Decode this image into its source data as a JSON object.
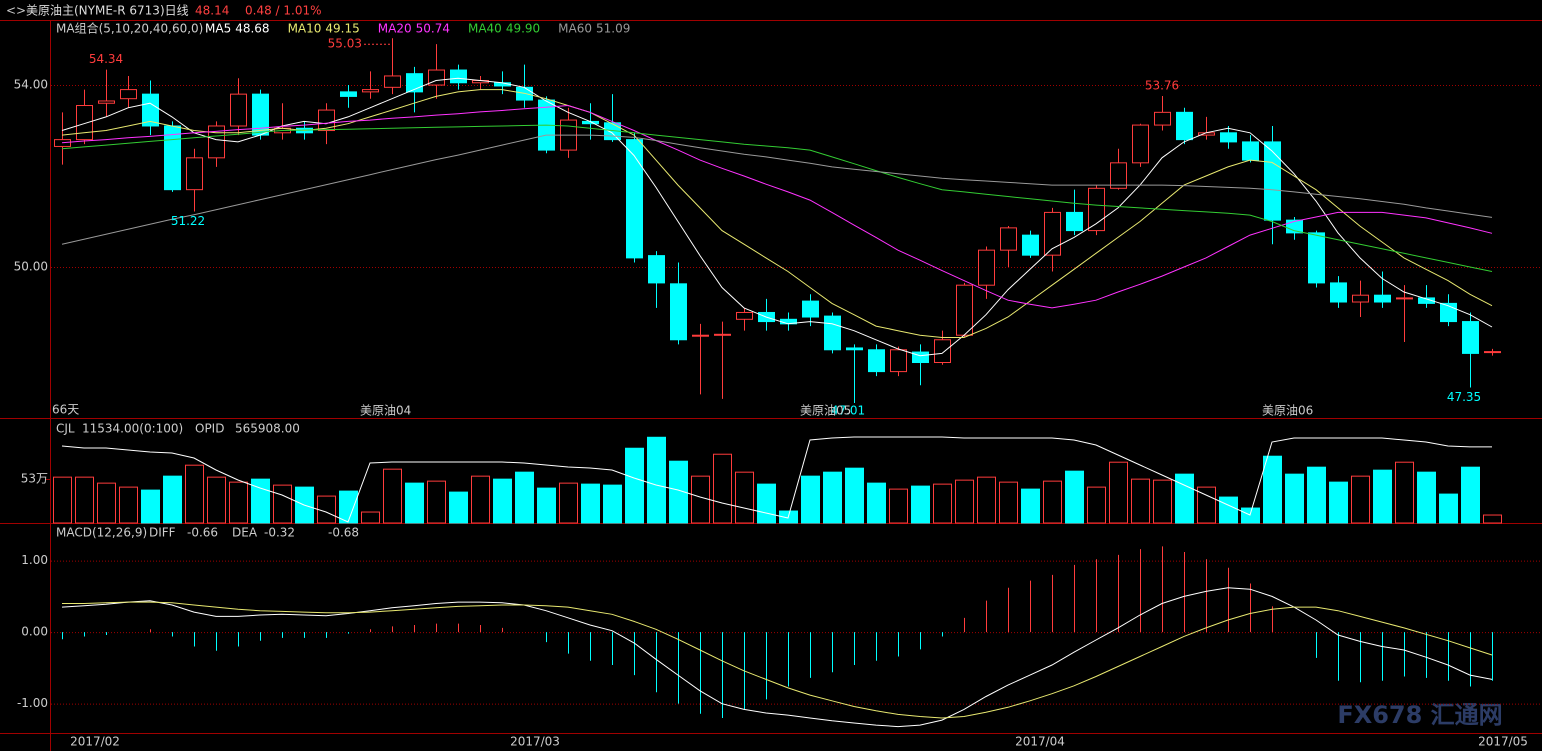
{
  "chart_data": {
    "type": "candlestick",
    "title": "美原油主(NYME-R 6713)日线",
    "last_price": "48.14",
    "change": "0.48 / 1.01%",
    "ma_title": "MA组合(5,10,20,40,60,0)",
    "days": "66天",
    "contracts": [
      "美原油04",
      "美原油05",
      "美原油06"
    ],
    "dates": [
      "2017/02",
      "2017/03",
      "2017/04",
      "2017/05"
    ],
    "watermark": "FX678 汇通网",
    "open": [
      52.65,
      52.8,
      53.6,
      53.7,
      53.8,
      53.1,
      51.7,
      52.4,
      53.1,
      53.8,
      52.95,
      53.05,
      53.0,
      53.85,
      53.85,
      53.95,
      54.25,
      54.0,
      54.33,
      54.05,
      54.05,
      53.95,
      53.67,
      52.57,
      53.2,
      53.17,
      52.8,
      50.25,
      49.63,
      48.48,
      48.5,
      48.85,
      49.0,
      48.85,
      49.25,
      48.92,
      48.22,
      48.18,
      47.7,
      48.13,
      47.9,
      48.5,
      49.6,
      50.37,
      50.7,
      50.26,
      51.2,
      50.8,
      51.73,
      52.29,
      53.12,
      53.4,
      52.9,
      52.95,
      52.75,
      52.75,
      51.03,
      50.75,
      49.65,
      49.23,
      49.38,
      49.3,
      49.32,
      49.2,
      48.8,
      48.12
    ],
    "high": [
      53.4,
      53.9,
      54.34,
      54.2,
      54.1,
      53.2,
      52.6,
      53.2,
      54.15,
      53.9,
      53.6,
      53.2,
      53.6,
      54.0,
      54.3,
      55.03,
      54.4,
      54.9,
      54.45,
      54.2,
      54.3,
      54.45,
      53.75,
      53.5,
      53.6,
      53.8,
      52.95,
      50.35,
      50.1,
      48.75,
      48.8,
      49.1,
      49.3,
      49.0,
      49.4,
      49.0,
      48.3,
      48.3,
      48.25,
      48.3,
      48.6,
      49.65,
      50.45,
      50.9,
      50.8,
      51.3,
      51.7,
      51.8,
      52.6,
      53.15,
      53.76,
      53.5,
      53.3,
      53.1,
      52.9,
      53.1,
      51.1,
      50.8,
      49.8,
      49.7,
      49.9,
      49.6,
      49.6,
      49.4,
      49.0,
      48.2
    ],
    "low": [
      52.25,
      52.7,
      53.3,
      53.5,
      52.9,
      51.65,
      51.22,
      52.2,
      52.9,
      52.8,
      52.8,
      52.8,
      52.7,
      53.5,
      53.7,
      53.8,
      53.4,
      53.7,
      53.9,
      53.9,
      53.8,
      53.5,
      52.5,
      52.4,
      52.8,
      52.75,
      50.1,
      49.1,
      48.3,
      47.2,
      47.1,
      48.6,
      48.6,
      48.6,
      48.7,
      48.1,
      47.01,
      47.6,
      47.6,
      47.4,
      47.85,
      48.45,
      49.3,
      50.0,
      50.2,
      49.9,
      50.7,
      50.7,
      51.7,
      52.2,
      53.0,
      52.7,
      52.8,
      52.6,
      52.3,
      50.5,
      50.6,
      49.55,
      49.1,
      48.9,
      49.1,
      48.35,
      49.1,
      48.7,
      47.35,
      48.05
    ],
    "close": [
      52.8,
      53.55,
      53.65,
      53.9,
      53.1,
      51.7,
      52.4,
      53.1,
      53.8,
      52.9,
      53.05,
      52.95,
      53.45,
      53.75,
      53.9,
      54.2,
      53.85,
      54.33,
      54.05,
      54.1,
      53.98,
      53.67,
      52.57,
      53.23,
      53.15,
      52.8,
      50.2,
      49.65,
      48.4,
      48.5,
      48.52,
      49.0,
      48.8,
      48.75,
      48.9,
      48.18,
      48.18,
      47.7,
      48.18,
      47.9,
      48.4,
      49.6,
      50.37,
      50.86,
      50.26,
      51.2,
      50.8,
      51.73,
      52.29,
      53.12,
      53.4,
      52.8,
      52.95,
      52.75,
      52.35,
      51.03,
      50.75,
      49.65,
      49.23,
      49.38,
      49.23,
      49.32,
      49.2,
      48.8,
      48.1,
      48.14
    ],
    "ylim": [
      46.68,
      55.43
    ],
    "yticks": [
      {
        "value": 50,
        "label": "50.00"
      },
      {
        "value": 54,
        "label": "54.00"
      }
    ],
    "ma": [
      {
        "name": "MA5",
        "color": "#ffffff",
        "legend_value": "48.68",
        "values": [
          53.0,
          53.15,
          53.3,
          53.5,
          53.6,
          53.3,
          52.95,
          52.8,
          52.75,
          52.9,
          53.1,
          53.2,
          53.15,
          53.3,
          53.5,
          53.7,
          53.9,
          54.1,
          54.15,
          54.1,
          54.05,
          53.95,
          53.65,
          53.4,
          53.2,
          52.95,
          52.45,
          51.75,
          51.0,
          50.25,
          49.55,
          49.1,
          48.9,
          48.75,
          48.8,
          48.75,
          48.6,
          48.4,
          48.2,
          48.05,
          48.1,
          48.5,
          48.95,
          49.5,
          49.95,
          50.4,
          50.65,
          50.95,
          51.3,
          51.8,
          52.4,
          52.75,
          52.95,
          53.05,
          52.95,
          52.55,
          52.05,
          51.45,
          50.75,
          50.2,
          49.75,
          49.45,
          49.3,
          49.15,
          48.95,
          48.68
        ]
      },
      {
        "name": "MA10",
        "color": "#e8e870",
        "legend_value": "49.15",
        "values": [
          52.9,
          52.95,
          53.0,
          53.1,
          53.2,
          53.1,
          53.0,
          52.95,
          52.95,
          53.0,
          53.05,
          53.0,
          53.05,
          53.15,
          53.3,
          53.45,
          53.6,
          53.75,
          53.85,
          53.9,
          53.9,
          53.82,
          53.7,
          53.55,
          53.4,
          53.15,
          52.9,
          52.35,
          51.8,
          51.3,
          50.8,
          50.5,
          50.2,
          49.9,
          49.55,
          49.2,
          48.95,
          48.7,
          48.6,
          48.5,
          48.45,
          48.45,
          48.65,
          48.9,
          49.25,
          49.6,
          49.95,
          50.3,
          50.65,
          51.0,
          51.4,
          51.8,
          52.0,
          52.2,
          52.35,
          52.3,
          52.0,
          51.7,
          51.3,
          50.9,
          50.55,
          50.2,
          49.95,
          49.7,
          49.4,
          49.15
        ]
      },
      {
        "name": "MA20",
        "color": "#ff33ff",
        "legend_value": "50.74",
        "values": [
          52.73,
          52.77,
          52.8,
          52.84,
          52.87,
          52.91,
          52.95,
          52.98,
          53.02,
          53.05,
          53.09,
          53.12,
          53.16,
          53.2,
          53.23,
          53.27,
          53.3,
          53.34,
          53.37,
          53.41,
          53.44,
          53.48,
          53.51,
          53.55,
          53.4,
          53.2,
          53.0,
          52.78,
          52.57,
          52.35,
          52.17,
          52.0,
          51.82,
          51.65,
          51.47,
          51.2,
          50.92,
          50.65,
          50.37,
          50.15,
          49.92,
          49.7,
          49.48,
          49.27,
          49.18,
          49.1,
          49.18,
          49.27,
          49.45,
          49.62,
          49.8,
          50.0,
          50.2,
          50.45,
          50.7,
          50.85,
          51.0,
          51.1,
          51.2,
          51.2,
          51.2,
          51.14,
          51.08,
          50.97,
          50.86,
          50.74
        ]
      },
      {
        "name": "MA40",
        "color": "#33cc33",
        "legend_value": "49.90",
        "values": [
          52.6,
          52.64,
          52.68,
          52.72,
          52.76,
          52.8,
          52.84,
          52.88,
          52.92,
          52.96,
          53.0,
          53.01,
          53.02,
          53.03,
          53.04,
          53.05,
          53.06,
          53.07,
          53.08,
          53.09,
          53.1,
          53.11,
          53.12,
          53.1,
          53.05,
          53.0,
          52.95,
          52.9,
          52.85,
          52.8,
          52.75,
          52.7,
          52.66,
          52.62,
          52.57,
          52.42,
          52.27,
          52.12,
          51.97,
          51.83,
          51.7,
          51.65,
          51.6,
          51.55,
          51.5,
          51.45,
          51.4,
          51.36,
          51.33,
          51.3,
          51.27,
          51.24,
          51.21,
          51.18,
          51.14,
          51.0,
          50.8,
          50.7,
          50.6,
          50.5,
          50.4,
          50.3,
          50.2,
          50.1,
          50.0,
          49.9
        ]
      },
      {
        "name": "MA60",
        "color": "#999999",
        "legend_value": "51.09",
        "values": [
          50.5,
          50.61,
          50.72,
          50.83,
          50.94,
          51.05,
          51.15,
          51.26,
          51.37,
          51.48,
          51.59,
          51.7,
          51.81,
          51.92,
          52.03,
          52.14,
          52.25,
          52.36,
          52.46,
          52.57,
          52.68,
          52.79,
          52.9,
          52.9,
          52.9,
          52.88,
          52.85,
          52.78,
          52.7,
          52.62,
          52.55,
          52.48,
          52.42,
          52.35,
          52.28,
          52.2,
          52.15,
          52.1,
          52.05,
          52.0,
          51.95,
          51.92,
          51.89,
          51.86,
          51.83,
          51.8,
          51.8,
          51.8,
          51.8,
          51.8,
          51.8,
          51.79,
          51.77,
          51.75,
          51.73,
          51.7,
          51.65,
          51.6,
          51.55,
          51.5,
          51.44,
          51.38,
          51.3,
          51.23,
          51.16,
          51.09
        ]
      }
    ],
    "volume": {
      "title": "CJL",
      "title_value": "11534.00(0:100)",
      "values": [
        552000,
        552000,
        480000,
        432000,
        396000,
        564000,
        696000,
        552000,
        492000,
        528000,
        456000,
        432000,
        324000,
        384000,
        132000,
        648000,
        480000,
        504000,
        372000,
        564000,
        528000,
        612000,
        420000,
        480000,
        468000,
        456000,
        900000,
        1032000,
        744000,
        564000,
        828000,
        612000,
        468000,
        144000,
        564000,
        612000,
        660000,
        480000,
        408000,
        444000,
        468000,
        516000,
        552000,
        492000,
        408000,
        504000,
        624000,
        432000,
        732000,
        528000,
        516000,
        588000,
        432000,
        312000,
        180000,
        804000,
        588000,
        672000,
        492000,
        564000,
        636000,
        732000,
        612000,
        348000,
        672000,
        96000
      ],
      "ylim": [
        0,
        1240000
      ],
      "yticks": [
        {
          "value": 530000,
          "label": "53万"
        }
      ],
      "opid": {
        "name": "OPID",
        "legend_value": "565908.00",
        "color": "#ffffff",
        "ylim": [
          430000,
          614000
        ],
        "values": [
          567522,
          563950,
          563950,
          560378,
          556806,
          555020,
          546090,
          524658,
          506798,
          492510,
          480008,
          462148,
          449646,
          431786,
          537160,
          538946,
          538946,
          538946,
          538946,
          538946,
          538946,
          537160,
          533588,
          530016,
          528230,
          524658,
          510370,
          497868,
          488938,
          476436,
          465720,
          456790,
          447860,
          438930,
          578238,
          581810,
          583596,
          583596,
          583596,
          583596,
          583596,
          581810,
          581810,
          581810,
          581810,
          581810,
          578238,
          569308,
          551448,
          533588,
          515728,
          497868,
          480008,
          462148,
          444288,
          574666,
          581810,
          581810,
          581810,
          581810,
          581810,
          578238,
          574666,
          567522,
          565908,
          565908
        ]
      }
    },
    "macd": {
      "title": "MACD(12,26,9)",
      "ylim": [
        -1.41,
        1.47
      ],
      "yticks": [
        {
          "value": -1,
          "label": "-1.00"
        },
        {
          "value": 0,
          "label": "0.00"
        },
        {
          "value": 1,
          "label": "1.00"
        }
      ],
      "diff": {
        "name": "DIFF",
        "legend_value": "-0.66",
        "color": "#ffffff",
        "values": [
          0.35,
          0.37,
          0.39,
          0.42,
          0.44,
          0.38,
          0.28,
          0.22,
          0.22,
          0.24,
          0.25,
          0.24,
          0.23,
          0.26,
          0.3,
          0.34,
          0.37,
          0.4,
          0.42,
          0.42,
          0.41,
          0.38,
          0.3,
          0.2,
          0.1,
          0.02,
          -0.15,
          -0.38,
          -0.6,
          -0.82,
          -1.0,
          -1.08,
          -1.13,
          -1.16,
          -1.2,
          -1.24,
          -1.27,
          -1.3,
          -1.32,
          -1.3,
          -1.23,
          -1.08,
          -0.9,
          -0.74,
          -0.6,
          -0.46,
          -0.28,
          -0.11,
          0.06,
          0.24,
          0.4,
          0.5,
          0.57,
          0.62,
          0.6,
          0.5,
          0.35,
          0.17,
          -0.04,
          -0.13,
          -0.2,
          -0.25,
          -0.35,
          -0.46,
          -0.6,
          -0.66
        ]
      },
      "dea": {
        "name": "DEA",
        "legend_value": "-0.32",
        "color": "#e8e870",
        "values": [
          0.4,
          0.4,
          0.41,
          0.42,
          0.42,
          0.41,
          0.38,
          0.35,
          0.32,
          0.3,
          0.29,
          0.28,
          0.27,
          0.27,
          0.28,
          0.3,
          0.32,
          0.34,
          0.36,
          0.37,
          0.38,
          0.38,
          0.37,
          0.35,
          0.3,
          0.25,
          0.15,
          0.04,
          -0.1,
          -0.25,
          -0.4,
          -0.54,
          -0.66,
          -0.78,
          -0.88,
          -0.96,
          -1.04,
          -1.1,
          -1.15,
          -1.18,
          -1.2,
          -1.18,
          -1.12,
          -1.05,
          -0.96,
          -0.86,
          -0.75,
          -0.62,
          -0.48,
          -0.34,
          -0.2,
          -0.06,
          0.06,
          0.17,
          0.26,
          0.32,
          0.35,
          0.35,
          0.3,
          0.22,
          0.14,
          0.06,
          -0.03,
          -0.12,
          -0.22,
          -0.32
        ]
      },
      "hist": {
        "legend_value": "-0.68",
        "values": [
          -0.1,
          -0.06,
          -0.04,
          0,
          0.04,
          -0.06,
          -0.2,
          -0.26,
          -0.2,
          -0.12,
          -0.08,
          -0.08,
          -0.08,
          -0.02,
          0.04,
          0.08,
          0.1,
          0.12,
          0.12,
          0.1,
          0.06,
          0,
          -0.14,
          -0.3,
          -0.4,
          -0.46,
          -0.6,
          -0.84,
          -1.0,
          -1.14,
          -1.2,
          -1.08,
          -0.94,
          -0.76,
          -0.64,
          -0.56,
          -0.46,
          -0.4,
          -0.34,
          -0.24,
          -0.06,
          0.2,
          0.44,
          0.62,
          0.72,
          0.8,
          0.94,
          1.02,
          1.08,
          1.16,
          1.2,
          1.12,
          1.02,
          0.9,
          0.68,
          0.36,
          0,
          -0.36,
          -0.68,
          -0.7,
          -0.68,
          -0.62,
          -0.64,
          -0.68,
          -0.76,
          -0.68
        ]
      }
    }
  }
}
